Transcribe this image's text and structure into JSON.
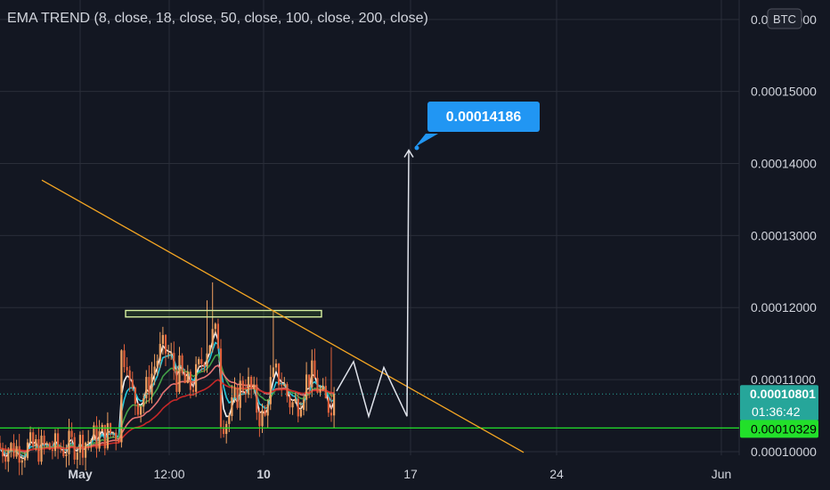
{
  "legend": {
    "title": "EMA TREND",
    "params": "(8, close, 18, close, 50, close, 100, close, 200, close)"
  },
  "currency_badge": "BTC",
  "colors": {
    "background": "#131722",
    "grid": "#2a2e39",
    "up_candle": "#f0a060",
    "down_candle": "#e0603a",
    "ema8": "#f5f5f5",
    "ema18": "#26c6da",
    "ema50": "#43a047",
    "ema100": "#e57373",
    "ema200": "#c62828",
    "trendline": "#f5a623",
    "support_line": "#22e02a",
    "target_label": "#2196f3",
    "price_label": "#26a69a",
    "projection": "#e0e3eb"
  },
  "chart_data": {
    "type": "candlestick",
    "title": "",
    "y_axis": {
      "ticks": [
        "0.00016000",
        "0.00015000",
        "0.00014000",
        "0.00013000",
        "0.00012000",
        "0.00011000",
        "0.00010000"
      ],
      "tick_values": [
        0.00016,
        0.00015,
        0.00014,
        0.00013,
        0.00012,
        0.00011,
        0.0001
      ],
      "range": [
        9.95e-05,
        0.0001627
      ]
    },
    "x_axis": {
      "ticks": [
        "May",
        "12:00",
        "10",
        "17",
        "24",
        "Jun"
      ]
    },
    "series_emas": [
      {
        "name": "EMA 8",
        "period": 8
      },
      {
        "name": "EMA 18",
        "period": 18
      },
      {
        "name": "EMA 50",
        "period": 50
      },
      {
        "name": "EMA 100",
        "period": 100
      },
      {
        "name": "EMA 200",
        "period": 200
      }
    ],
    "current_price": "0.00010801",
    "countdown": "01:36:42",
    "support_price": "0.00010329",
    "target_price": "0.00014186",
    "resistance_zone": [
      0.0001196,
      0.0001187
    ],
    "trendline": {
      "from_price": 0.0001377,
      "to_price": 9.99e-05
    }
  }
}
